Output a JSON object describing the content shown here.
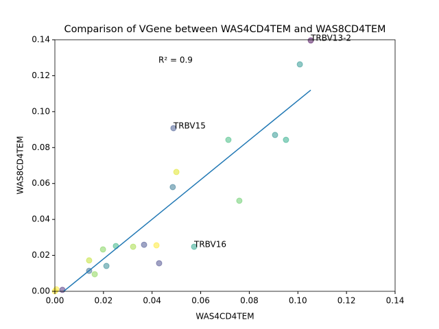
{
  "chart_data": {
    "type": "scatter",
    "title": "Comparison of VGene between WAS4CD4TEM and WAS8CD4TEM",
    "x_label": "WAS4CD4TEM",
    "y_label": "WAS8CD4TEM",
    "xlim": [
      0,
      0.14
    ],
    "ylim": [
      0,
      0.14
    ],
    "xticks": [
      {
        "value": 0,
        "label": "0.00"
      },
      {
        "value": 0.02,
        "label": "0.02"
      },
      {
        "value": 0.04,
        "label": "0.04"
      },
      {
        "value": 0.06,
        "label": "0.06"
      },
      {
        "value": 0.08,
        "label": "0.08"
      },
      {
        "value": 0.1,
        "label": "0.10"
      },
      {
        "value": 0.12,
        "label": "0.12"
      },
      {
        "value": 0.14,
        "label": "0.14"
      }
    ],
    "yticks": [
      {
        "value": 0,
        "label": "0.00"
      },
      {
        "value": 0.02,
        "label": "0.02"
      },
      {
        "value": 0.04,
        "label": "0.04"
      },
      {
        "value": 0.06,
        "label": "0.06"
      },
      {
        "value": 0.08,
        "label": "0.08"
      },
      {
        "value": 0.1,
        "label": "0.10"
      },
      {
        "value": 0.12,
        "label": "0.12"
      },
      {
        "value": 0.14,
        "label": "0.14"
      }
    ],
    "x": [
      0.1053,
      0.1008,
      0.0488,
      0.0714,
      0.0906,
      0.0951,
      0.05,
      0.0485,
      0.0759,
      0.0573,
      0.0367,
      0.0418,
      0.0322,
      0.0251,
      0.0198,
      0.0141,
      0.0141,
      0.0164,
      0.0212,
      0.0429,
      0.0031,
      0.0006,
      0
    ],
    "y": [
      0.1396,
      0.1263,
      0.0908,
      0.0843,
      0.087,
      0.0843,
      0.0664,
      0.058,
      0.0504,
      0.0248,
      0.0259,
      0.0256,
      0.0248,
      0.0252,
      0.0233,
      0.0172,
      0.0114,
      0.0095,
      0.0141,
      0.0156,
      0.0008,
      0.0011,
      0
    ],
    "colors": [
      "#440154",
      "#21918c",
      "#3b528b",
      "#35b779",
      "#21918c",
      "#22a884",
      "#dde318",
      "#2c728e",
      "#5ec962",
      "#1fa187",
      "#3e4a89",
      "#fde725",
      "#a0da39",
      "#2db27d",
      "#7ad151",
      "#bddf26",
      "#31688e",
      "#84d44b",
      "#25838e",
      "#414487",
      "#482878",
      "#fde725",
      "#fde725"
    ],
    "point_labels": [
      "TRBV13-2",
      null,
      "TRBV15",
      null,
      null,
      null,
      null,
      null,
      null,
      "TRBV16",
      null,
      null,
      null,
      null,
      null,
      null,
      null,
      null,
      null,
      null,
      null,
      null,
      null
    ],
    "fit": {
      "x": [
        0,
        0.1053
      ],
      "y": [
        -0.004,
        0.112
      ],
      "color": "#1f77b4"
    },
    "annotation": "R² = 0.9"
  }
}
